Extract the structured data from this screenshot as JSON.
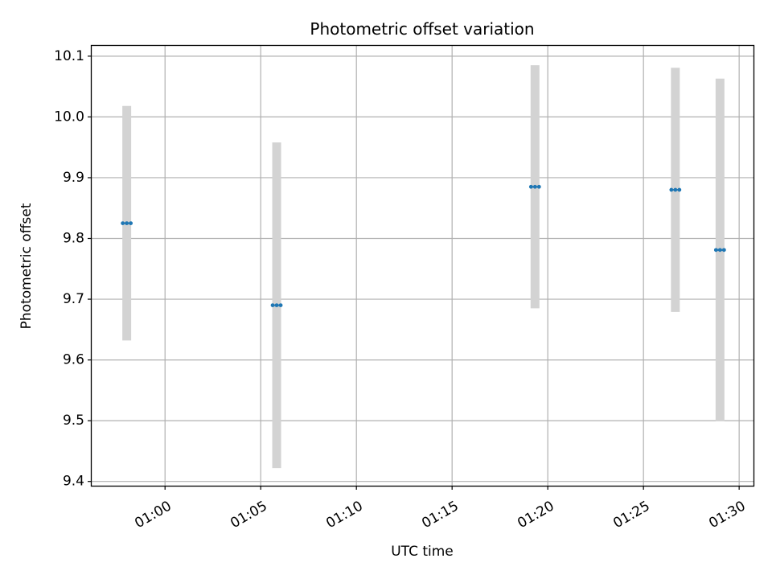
{
  "chart_data": {
    "type": "scatter",
    "title": "Photometric offset variation",
    "xlabel": "UTC time",
    "ylabel": "Photometric offset",
    "xlim": [
      "00:56:10",
      "01:30:45"
    ],
    "ylim": [
      9.393,
      10.117
    ],
    "x_ticks": [
      "01:00",
      "01:05",
      "01:10",
      "01:15",
      "01:20",
      "01:25",
      "01:30"
    ],
    "y_ticks": [
      "9.4",
      "9.5",
      "9.6",
      "9.7",
      "9.8",
      "9.9",
      "10.0",
      "10.1"
    ],
    "grid": true,
    "marker_color": "#1f77b4",
    "errorbar_color": "#d3d3d3",
    "points": [
      {
        "time": "00:58:00",
        "value": 9.825,
        "error": 0.193
      },
      {
        "time": "01:05:50",
        "value": 9.69,
        "error": 0.268
      },
      {
        "time": "01:19:20",
        "value": 9.885,
        "error": 0.2
      },
      {
        "time": "01:26:40",
        "value": 9.88,
        "error": 0.201
      },
      {
        "time": "01:29:00",
        "value": 9.781,
        "error": 0.282
      }
    ]
  }
}
